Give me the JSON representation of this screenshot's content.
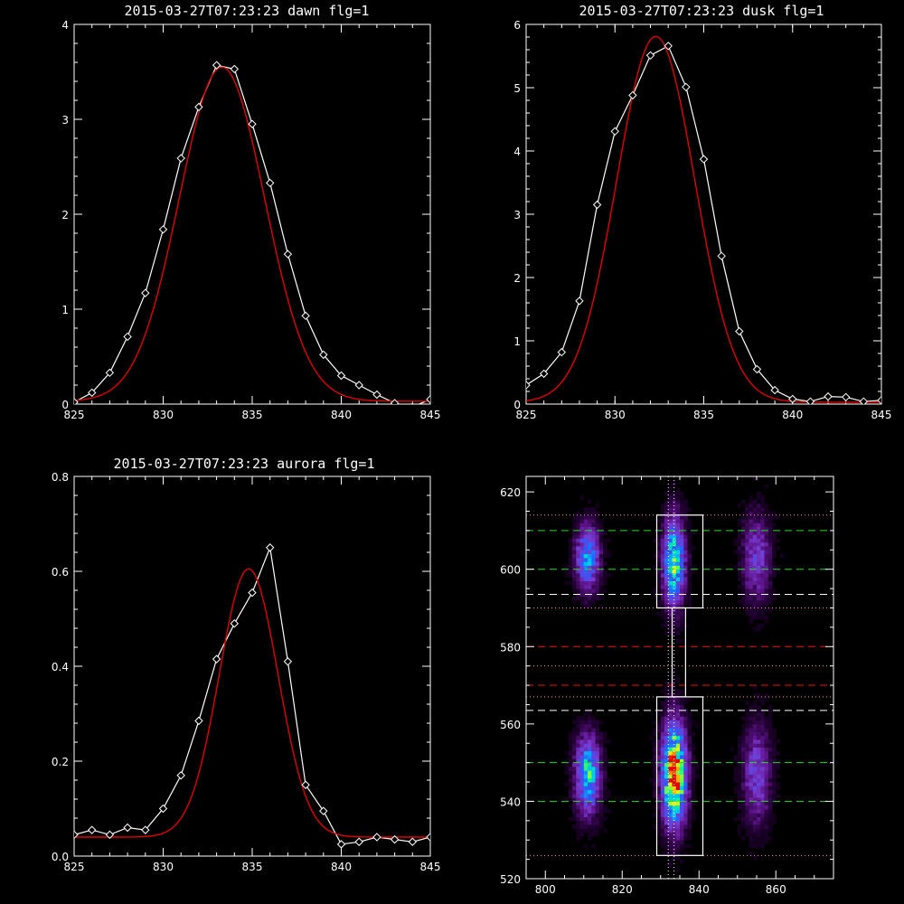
{
  "colors": {
    "background": "#000000",
    "axis": "#ffffff",
    "observed": "#ffffff",
    "fit": "#e00000",
    "line_green": "#22dd22",
    "line_red": "#ee1111",
    "line_white": "#ffffff",
    "line_pink": "#ff8fa0"
  },
  "chart_data": [
    {
      "type": "line",
      "title": "2015-03-27T07:23:23 dawn flg=1",
      "xlim": [
        825,
        845
      ],
      "ylim": [
        0,
        4
      ],
      "xticks": [
        825,
        830,
        835,
        840,
        845
      ],
      "yticks": [
        0,
        1,
        2,
        3,
        4
      ],
      "series": [
        {
          "style": "white-diamonds",
          "x": [
            825,
            826,
            827,
            828,
            829,
            830,
            831,
            832,
            833,
            834,
            835,
            836,
            837,
            838,
            839,
            840,
            841,
            842,
            843,
            844,
            845
          ],
          "y": [
            0.02,
            0.12,
            0.33,
            0.71,
            1.17,
            1.84,
            2.59,
            3.13,
            3.57,
            3.53,
            2.95,
            2.33,
            1.58,
            0.93,
            0.52,
            0.3,
            0.2,
            0.1,
            0.01,
            -0.03,
            0.05
          ]
        },
        {
          "style": "red-fit",
          "gaussian": {
            "amp": 3.52,
            "center": 833.3,
            "sigma": 2.4,
            "offset": 0.03
          }
        }
      ]
    },
    {
      "type": "line",
      "title": "2015-03-27T07:23:23 dusk flg=1",
      "xlim": [
        825,
        845
      ],
      "ylim": [
        0,
        6
      ],
      "xticks": [
        825,
        830,
        835,
        840,
        845
      ],
      "yticks": [
        0,
        1,
        2,
        3,
        4,
        5,
        6
      ],
      "series": [
        {
          "style": "white-diamonds",
          "x": [
            825,
            826,
            827,
            828,
            829,
            830,
            831,
            832,
            833,
            834,
            835,
            836,
            837,
            838,
            839,
            840,
            841,
            842,
            843,
            844,
            845
          ],
          "y": [
            0.3,
            0.48,
            0.82,
            1.63,
            3.15,
            4.31,
            4.88,
            5.51,
            5.66,
            5.01,
            3.87,
            2.34,
            1.15,
            0.55,
            0.22,
            0.08,
            0.04,
            0.12,
            0.11,
            0.04,
            0.06
          ]
        },
        {
          "style": "red-fit",
          "gaussian": {
            "amp": 5.78,
            "center": 832.3,
            "sigma": 2.2,
            "offset": 0.03
          }
        }
      ]
    },
    {
      "type": "line",
      "title": "2015-03-27T07:23:23 aurora flg=1",
      "xlim": [
        825,
        845
      ],
      "ylim": [
        0,
        0.8
      ],
      "xticks": [
        825,
        830,
        835,
        840,
        845
      ],
      "yticks": [
        0,
        0.2,
        0.4,
        0.6,
        0.8
      ],
      "ytick_labels": [
        "0.0",
        "0.2",
        "0.4",
        "0.6",
        "0.8"
      ],
      "series": [
        {
          "style": "white-diamonds",
          "x": [
            825,
            826,
            827,
            828,
            829,
            830,
            831,
            832,
            833,
            834,
            835,
            836,
            837,
            838,
            839,
            840,
            841,
            842,
            843,
            844,
            845
          ],
          "y": [
            0.045,
            0.055,
            0.045,
            0.06,
            0.055,
            0.1,
            0.17,
            0.285,
            0.415,
            0.49,
            0.555,
            0.65,
            0.41,
            0.15,
            0.095,
            0.025,
            0.03,
            0.04,
            0.035,
            0.03,
            0.04
          ]
        },
        {
          "style": "red-fit",
          "gaussian": {
            "amp": 0.565,
            "center": 834.8,
            "sigma": 1.65,
            "offset": 0.04
          }
        }
      ]
    },
    {
      "type": "heatmap",
      "xlim": [
        795,
        875
      ],
      "ylim": [
        520,
        624
      ],
      "xticks": [
        800,
        820,
        840,
        860
      ],
      "yticks": [
        520,
        540,
        560,
        580,
        600,
        620
      ],
      "blobs": [
        {
          "x": 811,
          "y": 603,
          "amp": 0.5,
          "sx": 2.3,
          "sy": 6
        },
        {
          "x": 811,
          "y": 547,
          "amp": 0.62,
          "sx": 2.3,
          "sy": 7
        },
        {
          "x": 833.5,
          "y": 602,
          "amp": 0.68,
          "sx": 2.0,
          "sy": 8
        },
        {
          "x": 833.5,
          "y": 547,
          "amp": 1.0,
          "sx": 2.2,
          "sy": 9
        },
        {
          "x": 855,
          "y": 603,
          "amp": 0.32,
          "sx": 2.6,
          "sy": 8
        },
        {
          "x": 855,
          "y": 547,
          "amp": 0.34,
          "sx": 2.6,
          "sy": 9
        }
      ],
      "hlines": [
        {
          "y": 610,
          "color": "green",
          "dash": "long"
        },
        {
          "y": 600,
          "color": "green",
          "dash": "long"
        },
        {
          "y": 550,
          "color": "green",
          "dash": "long"
        },
        {
          "y": 540,
          "color": "green",
          "dash": "long"
        },
        {
          "y": 580,
          "color": "red",
          "dash": "long"
        },
        {
          "y": 570,
          "color": "red",
          "dash": "long"
        },
        {
          "y": 593.5,
          "color": "white",
          "dash": "long"
        },
        {
          "y": 563.5,
          "color": "white",
          "dash": "long"
        },
        {
          "y": 614,
          "color": "pink",
          "dash": "dot"
        },
        {
          "y": 590,
          "color": "pink",
          "dash": "dot"
        },
        {
          "y": 575,
          "color": "pink",
          "dash": "dot"
        },
        {
          "y": 567,
          "color": "pink",
          "dash": "dot"
        },
        {
          "y": 526,
          "color": "pink",
          "dash": "dot"
        }
      ],
      "vlines": [
        {
          "x": 832,
          "color": "white",
          "dash": "dot"
        },
        {
          "x": 833.5,
          "color": "white",
          "dash": "dot"
        }
      ],
      "boxes": [
        {
          "x0": 829,
          "x1": 841,
          "y0": 590,
          "y1": 614
        },
        {
          "x0": 829,
          "x1": 841,
          "y0": 526,
          "y1": 567
        },
        {
          "x0": 833,
          "x1": 836.5,
          "y0": 567,
          "y1": 590
        }
      ]
    }
  ]
}
